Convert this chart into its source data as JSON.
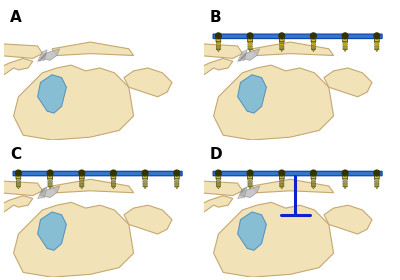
{
  "background_color": "#ffffff",
  "panel_labels": [
    "A",
    "B",
    "C",
    "D"
  ],
  "label_fontsize": 11,
  "label_fontweight": "bold",
  "bone_color": "#F2E2B8",
  "bone_edge_color": "#C4A870",
  "blue_color": "#7BBBD8",
  "blue_dark": "#4488BB",
  "plate_color": "#3377CC",
  "plate_edge": "#1144AA",
  "screw_yellow": "#CCBB33",
  "screw_dark": "#333300",
  "gray_lig": "#999999",
  "dark_blue": "#1122CC",
  "figure_width": 4.0,
  "figure_height": 2.8,
  "dpi": 100,
  "border_color": "#CCCCCC"
}
